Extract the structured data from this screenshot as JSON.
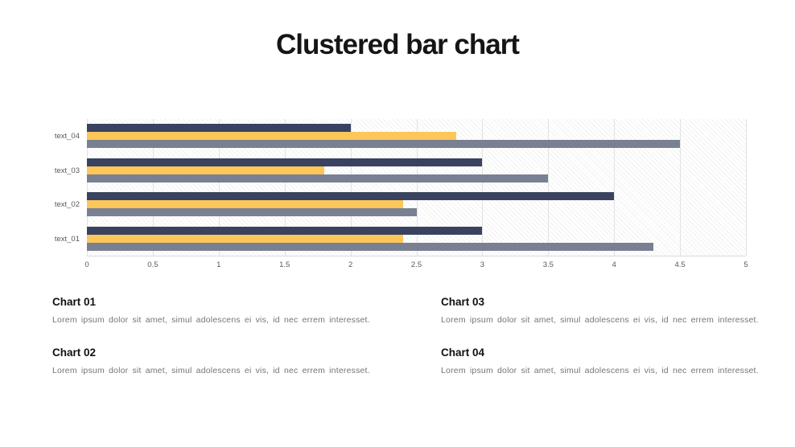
{
  "title": "Clustered bar chart",
  "chart_data": {
    "type": "bar",
    "orientation": "horizontal",
    "categories": [
      "text_04",
      "text_03",
      "text_02",
      "text_01"
    ],
    "series": [
      {
        "name": "navy",
        "color": "#39425F",
        "values": [
          2.0,
          3.0,
          4.0,
          3.0
        ]
      },
      {
        "name": "yellow",
        "color": "#FCC659",
        "values": [
          2.8,
          1.8,
          2.4,
          2.4
        ]
      },
      {
        "name": "gray",
        "color": "#798092",
        "values": [
          4.5,
          3.5,
          2.5,
          4.3
        ]
      }
    ],
    "xlim": [
      0,
      5
    ],
    "x_tick_labels": [
      "0",
      "0.5",
      "1",
      "1.5",
      "2",
      "2.5",
      "3",
      "3.5",
      "4",
      "4.5",
      "5"
    ],
    "grid": true,
    "legend": false
  },
  "sections": [
    {
      "heading": "Chart 01",
      "body": "Lorem ipsum dolor sit amet, simul adolescens ei vis, id nec errem interesset."
    },
    {
      "heading": "Chart 02",
      "body": "Lorem ipsum dolor sit amet, simul adolescens ei vis, id nec errem interesset."
    },
    {
      "heading": "Chart 03",
      "body": "Lorem ipsum dolor sit amet, simul adolescens ei vis, id nec errem interesset."
    },
    {
      "heading": "Chart 04",
      "body": "Lorem ipsum dolor sit amet, simul adolescens ei vis, id nec errem interesset."
    }
  ],
  "colors": {
    "axis_text": "#595959",
    "gridline": "#E2E2E2",
    "title_text": "#151515"
  }
}
